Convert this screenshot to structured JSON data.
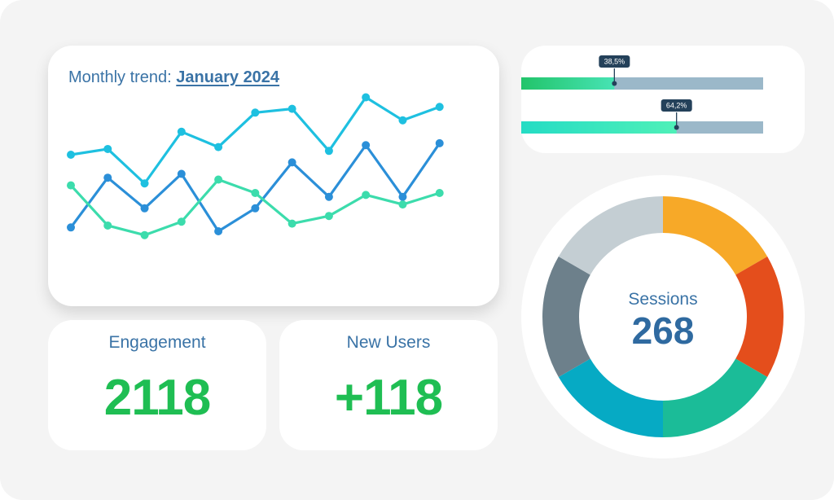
{
  "trend": {
    "title_prefix": "Monthly trend:",
    "title_month": "January 2024"
  },
  "progress": [
    {
      "label": "38,5%",
      "value": 0.385,
      "color_start": "#22c46a",
      "color_end": "#47e3b4",
      "track": "#9bb8c9"
    },
    {
      "label": "64,2%",
      "value": 0.642,
      "color_start": "#25dcc4",
      "color_end": "#4ff0b8",
      "track": "#9bb8c9"
    }
  ],
  "kpis": {
    "engagement": {
      "label": "Engagement",
      "value": "2118",
      "color": "#1fbe53"
    },
    "new_users": {
      "label": "New Users",
      "value": "+118",
      "color": "#1fbe53"
    }
  },
  "sessions": {
    "label": "Sessions",
    "value": "268"
  },
  "chart_data": [
    {
      "type": "line",
      "x": [
        1,
        2,
        3,
        4,
        5,
        6,
        7,
        8,
        9,
        10,
        11,
        12
      ],
      "ylim": [
        0,
        100
      ],
      "grid": false,
      "series": [
        {
          "color": "#1ec0e0",
          "values": [
            60,
            63,
            45,
            72,
            64,
            82,
            84,
            62,
            90,
            78,
            85,
            null
          ]
        },
        {
          "color": "#2b8fd8",
          "values": [
            22,
            48,
            32,
            50,
            20,
            32,
            56,
            38,
            65,
            38,
            66,
            null
          ]
        },
        {
          "color": "#3cdcac",
          "values": [
            44,
            23,
            18,
            25,
            47,
            40,
            24,
            28,
            39,
            34,
            40,
            null
          ]
        }
      ]
    },
    {
      "type": "pie",
      "donut": true,
      "values": [
        1,
        1,
        1,
        1,
        1,
        1
      ],
      "colors": [
        "#f7a928",
        "#e44e1c",
        "#1bbc98",
        "#06aac4",
        "#6d808b",
        "#c4ced3"
      ]
    }
  ]
}
